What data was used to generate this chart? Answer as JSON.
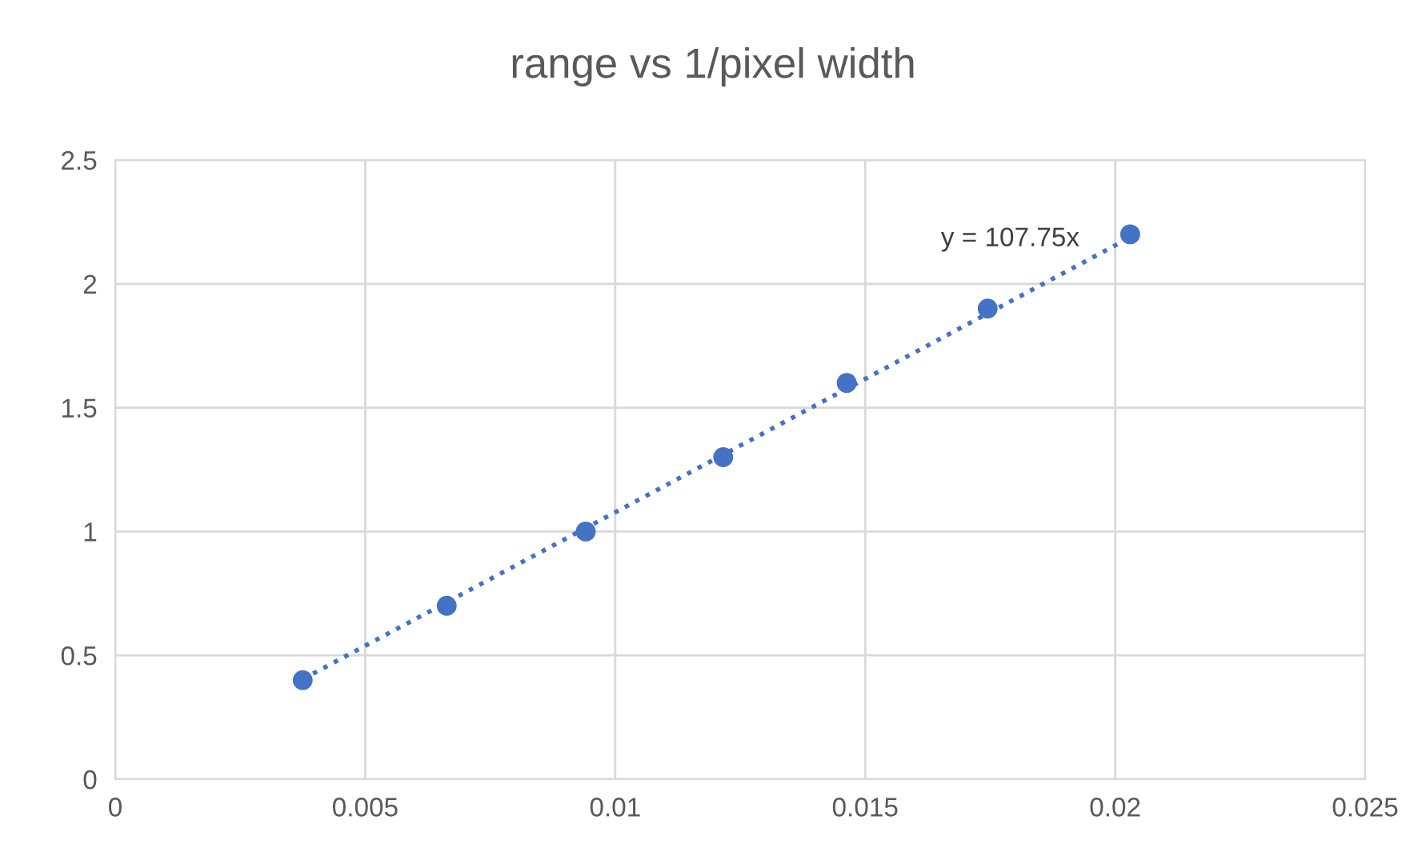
{
  "chart_data": {
    "type": "scatter",
    "title": "range vs 1/pixel width",
    "series": [
      {
        "color": "#4472c4",
        "marker": "circle",
        "x": [
          0.00375,
          0.00663,
          0.00941,
          0.01216,
          0.01463,
          0.01745,
          0.0203
        ],
        "values": [
          0.4,
          0.7,
          1.0,
          1.3,
          1.6,
          1.9,
          2.2
        ]
      },
      {
        "type": "line",
        "color": "#4472c4",
        "line_style": "dotted",
        "marker": "none",
        "x": [
          0.00375,
          0.0205
        ],
        "values": [
          0.404,
          2.209
        ]
      }
    ],
    "annotations": [
      "y = 107.75x"
    ],
    "xlim": [
      0,
      0.025
    ],
    "xticks": [
      0,
      0.005,
      0.01,
      0.015,
      0.02,
      0.025
    ],
    "ylim": [
      0,
      2.5
    ],
    "yticks": [
      0,
      0.5,
      1,
      1.5,
      2,
      2.5
    ],
    "grid": true
  }
}
